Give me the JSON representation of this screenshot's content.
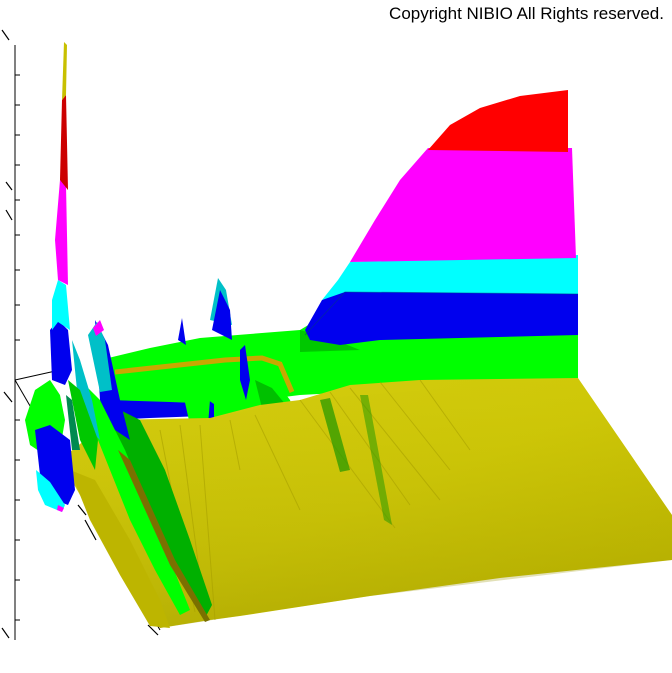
{
  "copyright": "Copyright NIBIO All Rights reserved.",
  "chart_data": {
    "type": "surface",
    "title": "",
    "xlabel": "",
    "ylabel": "",
    "zlabel": "",
    "grid": false,
    "legend": "none",
    "colors": {
      "band_1": "#c8c000",
      "band_2": "#00ff00",
      "band_3": "#00d000",
      "band_4": "#0000ee",
      "band_5": "#00ffff",
      "band_6": "#00c0c8",
      "band_7": "#ff00ff",
      "band_8": "#ff0000",
      "band_9": "#c0c000",
      "axis": "#000000"
    }
  }
}
